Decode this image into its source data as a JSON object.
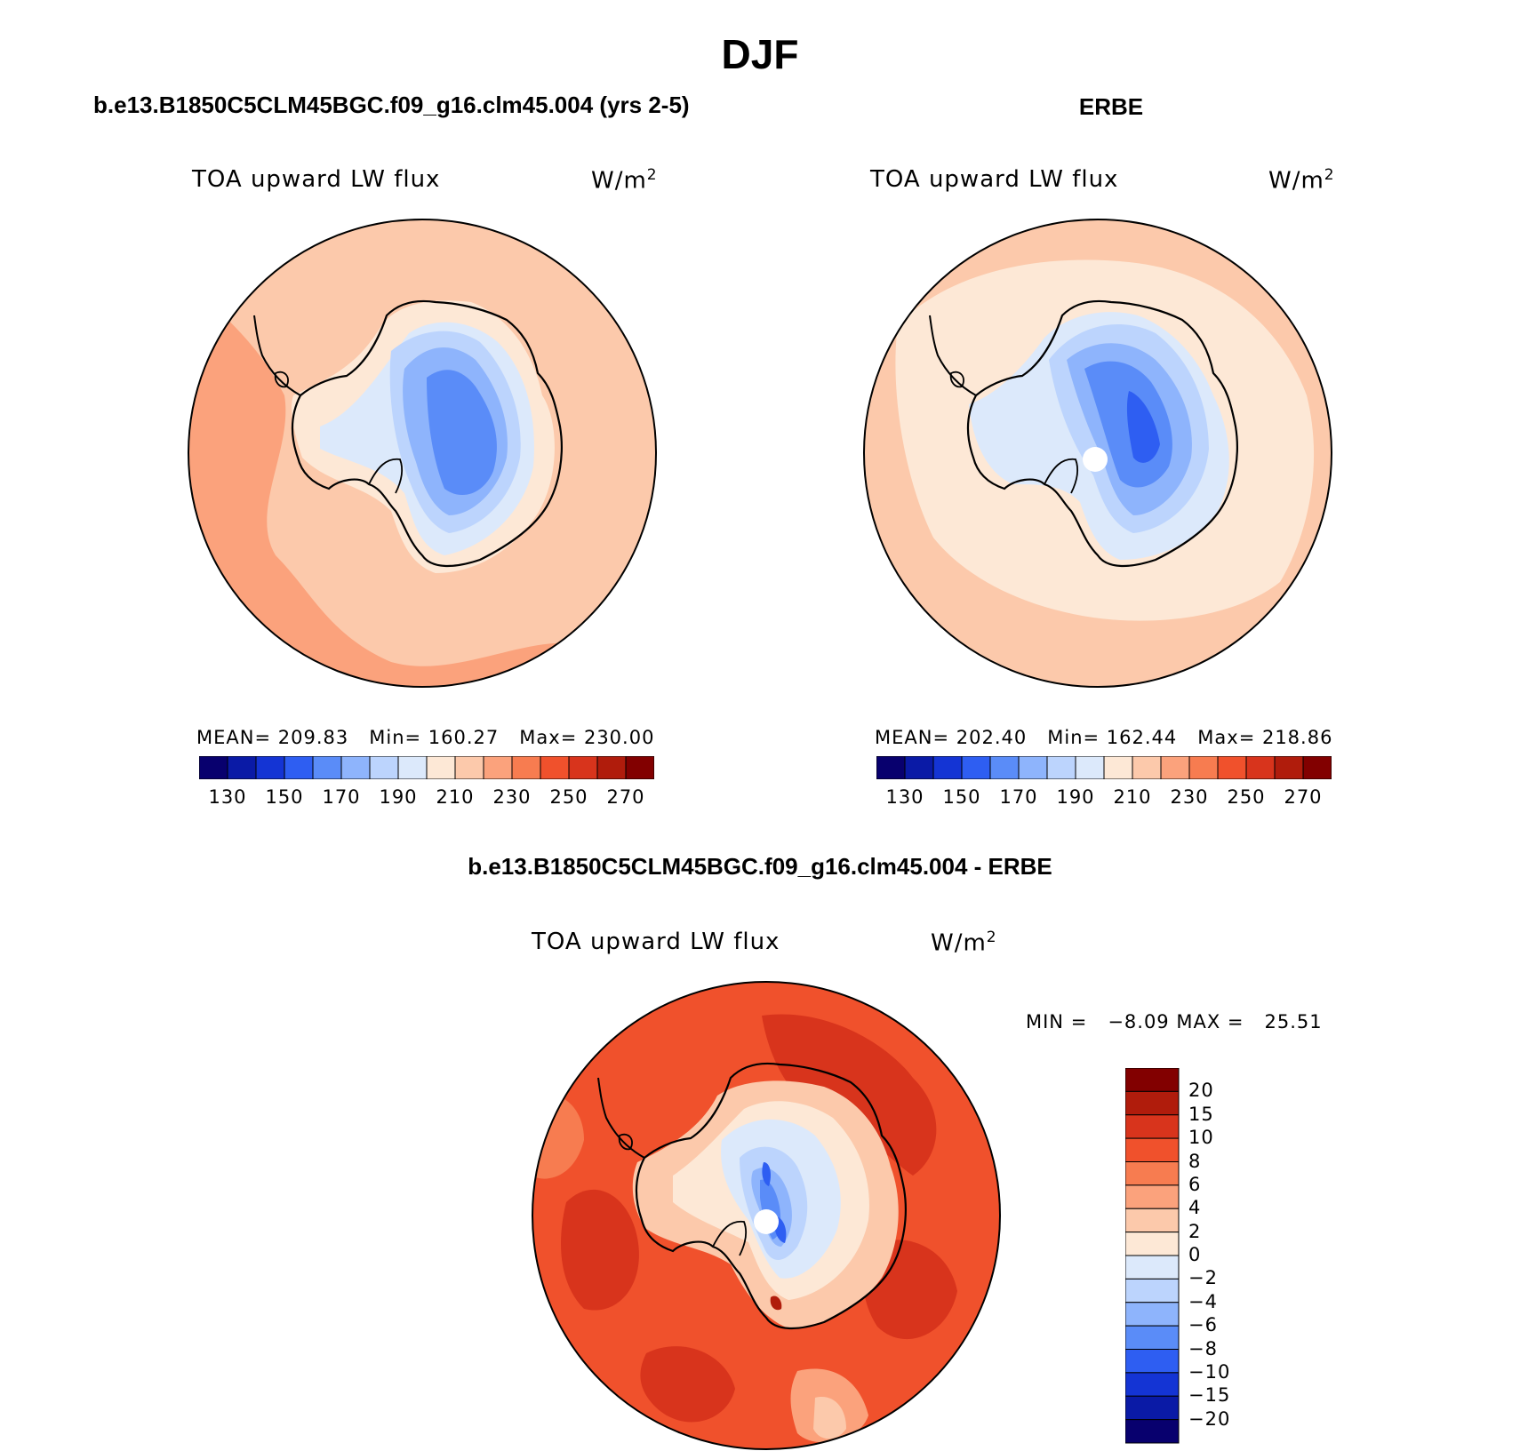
{
  "figure": {
    "title": "DJF",
    "panels": [
      {
        "heading": "b.e13.B1850C5CLM45BGC.f09_g16.clm45.004 (yrs 2-5)",
        "variable": "TOA upward LW flux",
        "units": "W/m",
        "units_sup": "2",
        "stats": "MEAN= 209.83   Min= 160.27   Max= 230.00"
      },
      {
        "heading": "ERBE",
        "variable": "TOA upward LW flux",
        "units": "W/m",
        "units_sup": "2",
        "stats": "MEAN= 202.40   Min= 162.44   Max= 218.86"
      }
    ],
    "difference": {
      "heading": "b.e13.B1850C5CLM45BGC.f09_g16.clm45.004 - ERBE",
      "variable": "TOA upward LW flux",
      "units": "W/m",
      "units_sup": "2",
      "stats": "MIN =   −8.09 MAX =   25.51"
    }
  },
  "colorbar_abs": {
    "colors": [
      "#08006e",
      "#0a1aa6",
      "#1434d4",
      "#2e5ef2",
      "#5a8cf8",
      "#8eb4fc",
      "#bcd4fd",
      "#dce9fb",
      "#fde8d6",
      "#fcc9ab",
      "#fba27c",
      "#f77c50",
      "#f0512c",
      "#d8341c",
      "#b01c0c",
      "#820000"
    ],
    "labels": [
      "130",
      "150",
      "170",
      "190",
      "210",
      "230",
      "250",
      "270"
    ]
  },
  "colorbar_diff": {
    "colors": [
      "#820000",
      "#b01c0c",
      "#d8341c",
      "#f0512c",
      "#f77c50",
      "#fba27c",
      "#fcc9ab",
      "#fde8d6",
      "#dce9fb",
      "#bcd4fd",
      "#8eb4fc",
      "#5a8cf8",
      "#2e5ef2",
      "#1434d4",
      "#0a1aa6",
      "#08006e"
    ],
    "labels": [
      "20",
      "15",
      "10",
      "8",
      "6",
      "4",
      "2",
      "0",
      "−2",
      "−4",
      "−6",
      "−8",
      "−10",
      "−15",
      "−20"
    ]
  }
}
